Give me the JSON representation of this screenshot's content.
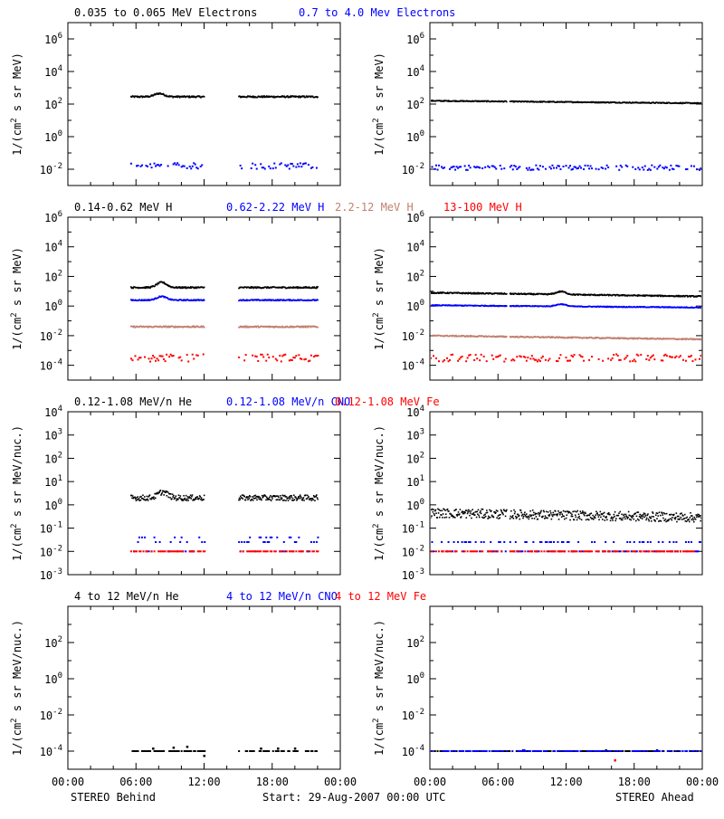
{
  "colors": {
    "black": "#000000",
    "blue": "#0000ff",
    "tan": "#c08070",
    "red": "#ff0000"
  },
  "footer": {
    "left": "STEREO Behind",
    "center": "Start: 29-Aug-2007 00:00 UTC",
    "right": "STEREO Ahead"
  },
  "chart_data": [
    {
      "type": "scatter",
      "panel": "row1-left",
      "ylabel": "1/(cm² s sr MeV)",
      "ylabel_plain": "1/(cm",
      "ylabel_sup": "2",
      "ylabel_rest": " s sr MeV)",
      "yscale": "log",
      "ylim_exp": [
        -3,
        7
      ],
      "ytick_exps": [
        -2,
        0,
        2,
        4,
        6
      ],
      "ytick_labels": [
        "10⁻²",
        "10⁰",
        "10²",
        "10⁴",
        "10⁶"
      ],
      "xlim_hours": [
        0,
        24
      ],
      "legend": [
        {
          "text": "0.035 to 0.065 MeV Electrons",
          "color": "#000000"
        },
        {
          "text": "0.7 to 4.0 Mev Electrons",
          "color": "#0000ff"
        }
      ],
      "series": [
        {
          "name": "0.035 to 0.065 MeV Electrons",
          "color": "#000000",
          "segments": [
            [
              5.5,
              12.0
            ],
            [
              15.0,
              22.0
            ]
          ],
          "level_exp": 2.45,
          "jitter": 0.05,
          "bump": {
            "at": 8.0,
            "amp": 0.2
          }
        },
        {
          "name": "0.7 to 4.0 Mev Electrons",
          "color": "#0000ff",
          "segments": [
            [
              5.5,
              12.0
            ],
            [
              15.0,
              22.0
            ]
          ],
          "level_exp": -1.8,
          "jitter": 0.18,
          "sparse": true
        }
      ]
    },
    {
      "type": "scatter",
      "panel": "row1-right",
      "ylabel_plain": "1/(cm",
      "ylabel_sup": "2",
      "ylabel_rest": " s sr MeV)",
      "yscale": "log",
      "ylim_exp": [
        -3,
        7
      ],
      "ytick_exps": [
        -2,
        0,
        2,
        4,
        6
      ],
      "ytick_labels": [
        "10⁻²",
        "10⁰",
        "10²",
        "10⁴",
        "10⁶"
      ],
      "xlim_hours": [
        0,
        24
      ],
      "series": [
        {
          "name": "0.035 to 0.065 MeV Electrons",
          "color": "#000000",
          "segments": [
            [
              0.0,
              6.7
            ],
            [
              7.0,
              24.0
            ]
          ],
          "level_exp": 2.2,
          "jitter": 0.03,
          "trend": -0.15
        },
        {
          "name": "0.7 to 4.0 Mev Electrons",
          "color": "#0000ff",
          "segments": [
            [
              0.0,
              6.7
            ],
            [
              7.0,
              24.0
            ]
          ],
          "level_exp": -1.9,
          "jitter": 0.15,
          "sparse": true
        }
      ]
    },
    {
      "type": "scatter",
      "panel": "row2-left",
      "ylabel_plain": "1/(cm",
      "ylabel_sup": "2",
      "ylabel_rest": " s sr MeV)",
      "yscale": "log",
      "ylim_exp": [
        -5,
        6
      ],
      "ytick_exps": [
        -4,
        -2,
        0,
        2,
        4,
        6
      ],
      "ytick_labels": [
        "10⁻⁴",
        "10⁻²",
        "10⁰",
        "10²",
        "10⁴",
        "10⁶"
      ],
      "xlim_hours": [
        0,
        24
      ],
      "legend": [
        {
          "text": "0.14-0.62 MeV H",
          "color": "#000000"
        },
        {
          "text": "0.62-2.22 MeV H",
          "color": "#0000ff"
        },
        {
          "text": "2.2-12 MeV H",
          "color": "#c08070"
        },
        {
          "text": "13-100 MeV H",
          "color": "#ff0000"
        }
      ],
      "series": [
        {
          "name": "0.14-0.62 MeV H",
          "color": "#000000",
          "segments": [
            [
              5.5,
              12.0
            ],
            [
              15.0,
              22.0
            ]
          ],
          "level_exp": 1.25,
          "jitter": 0.05,
          "bump": {
            "at": 8.2,
            "amp": 0.35
          }
        },
        {
          "name": "0.62-2.22 MeV H",
          "color": "#0000ff",
          "segments": [
            [
              5.5,
              12.0
            ],
            [
              15.0,
              22.0
            ]
          ],
          "level_exp": 0.4,
          "jitter": 0.04,
          "bump": {
            "at": 8.2,
            "amp": 0.25
          }
        },
        {
          "name": "2.2-12 MeV H",
          "color": "#c08070",
          "segments": [
            [
              5.5,
              12.0
            ],
            [
              15.0,
              22.0
            ]
          ],
          "level_exp": -1.4,
          "jitter": 0.05
        },
        {
          "name": "13-100 MeV H",
          "color": "#ff0000",
          "segments": [
            [
              5.5,
              12.0
            ],
            [
              15.0,
              22.0
            ]
          ],
          "level_exp": -3.5,
          "jitter": 0.25,
          "sparse": true
        }
      ]
    },
    {
      "type": "scatter",
      "panel": "row2-right",
      "ylabel_plain": "1/(cm",
      "ylabel_sup": "2",
      "ylabel_rest": " s sr MeV)",
      "yscale": "log",
      "ylim_exp": [
        -5,
        6
      ],
      "ytick_exps": [
        -4,
        -2,
        0,
        2,
        4,
        6
      ],
      "ytick_labels": [
        "10⁻⁴",
        "10⁻²",
        "10⁰",
        "10²",
        "10⁴",
        "10⁶"
      ],
      "xlim_hours": [
        0,
        24
      ],
      "series": [
        {
          "name": "0.14-0.62 MeV H",
          "color": "#000000",
          "segments": [
            [
              0.0,
              6.7
            ],
            [
              7.0,
              24.0
            ]
          ],
          "level_exp": 0.9,
          "jitter": 0.04,
          "bump": {
            "at": 11.5,
            "amp": 0.2
          },
          "trend": -0.25
        },
        {
          "name": "0.62-2.22 MeV H",
          "color": "#0000ff",
          "segments": [
            [
              0.0,
              6.7
            ],
            [
              7.0,
              24.0
            ]
          ],
          "level_exp": 0.05,
          "jitter": 0.03,
          "bump": {
            "at": 11.5,
            "amp": 0.15
          },
          "trend": -0.15
        },
        {
          "name": "2.2-12 MeV H",
          "color": "#c08070",
          "segments": [
            [
              0.0,
              6.7
            ],
            [
              7.0,
              24.0
            ]
          ],
          "level_exp": -2.0,
          "jitter": 0.04,
          "trend": -0.25
        },
        {
          "name": "13-100 MeV H",
          "color": "#ff0000",
          "segments": [
            [
              0.0,
              6.7
            ],
            [
              7.0,
              24.0
            ]
          ],
          "level_exp": -3.5,
          "jitter": 0.25,
          "sparse": true
        }
      ]
    },
    {
      "type": "scatter",
      "panel": "row3-left",
      "ylabel_plain": "1/(cm",
      "ylabel_sup": "2",
      "ylabel_rest": " s sr MeV/nuc.)",
      "yscale": "log",
      "ylim_exp": [
        -3,
        4
      ],
      "ytick_exps": [
        -3,
        -2,
        -1,
        0,
        1,
        2,
        3,
        4
      ],
      "ytick_labels": [
        "10⁻³",
        "10⁻²",
        "10⁻¹",
        "10⁰",
        "10¹",
        "10²",
        "10³",
        "10⁴"
      ],
      "xlim_hours": [
        0,
        24
      ],
      "legend": [
        {
          "text": "0.12-1.08 MeV/n He",
          "color": "#000000"
        },
        {
          "text": "0.12-1.08 MeV/n CNO",
          "color": "#0000ff"
        },
        {
          "text": "0.12-1.08 MeV Fe",
          "color": "#ff0000"
        }
      ],
      "series": [
        {
          "name": "0.12-1.08 MeV/n He",
          "color": "#000000",
          "segments": [
            [
              5.5,
              12.0
            ],
            [
              15.0,
              22.0
            ]
          ],
          "level_exp": 0.3,
          "jitter": 0.12,
          "bump": {
            "at": 8.3,
            "amp": 0.25
          }
        },
        {
          "name": "0.12-1.08 MeV/n CNO",
          "color": "#0000ff",
          "segments": [
            [
              5.5,
              12.0
            ],
            [
              15.0,
              22.0
            ]
          ],
          "level_exp": -1.55,
          "jitter": 0.12,
          "quantized": [
            -1.6,
            -1.4,
            -2.0
          ],
          "sparse": true
        },
        {
          "name": "0.12-1.08 MeV Fe",
          "color": "#ff0000",
          "segments": [
            [
              5.5,
              12.0
            ],
            [
              15.0,
              22.0
            ]
          ],
          "level_exp": -2.0,
          "jitter": 0.0,
          "sparse": true
        }
      ]
    },
    {
      "type": "scatter",
      "panel": "row3-right",
      "ylabel_plain": "1/(cm",
      "ylabel_sup": "2",
      "ylabel_rest": " s sr MeV/nuc.)",
      "yscale": "log",
      "ylim_exp": [
        -3,
        4
      ],
      "ytick_exps": [
        -3,
        -2,
        -1,
        0,
        1,
        2,
        3,
        4
      ],
      "ytick_labels": [
        "10⁻³",
        "10⁻²",
        "10⁻¹",
        "10⁰",
        "10¹",
        "10²",
        "10³",
        "10⁴"
      ],
      "xlim_hours": [
        0,
        24
      ],
      "series": [
        {
          "name": "0.12-1.08 MeV/n He",
          "color": "#000000",
          "segments": [
            [
              0.0,
              6.7
            ],
            [
              7.0,
              24.0
            ]
          ],
          "level_exp": -0.35,
          "jitter": 0.2,
          "trend": -0.2
        },
        {
          "name": "0.12-1.08 MeV/n CNO",
          "color": "#0000ff",
          "segments": [
            [
              0.0,
              6.7
            ],
            [
              7.0,
              24.0
            ]
          ],
          "level_exp": -2.0,
          "jitter": 0.0,
          "quantized": [
            -2.0,
            -1.6
          ],
          "sparse": true
        },
        {
          "name": "0.12-1.08 MeV Fe",
          "color": "#ff0000",
          "segments": [
            [
              0.0,
              6.7
            ],
            [
              7.0,
              24.0
            ]
          ],
          "level_exp": -2.0,
          "jitter": 0.0,
          "sparse": true
        }
      ]
    },
    {
      "type": "scatter",
      "panel": "row4-left",
      "ylabel_plain": "1/(cm",
      "ylabel_sup": "2",
      "ylabel_rest": " s sr MeV/nuc.)",
      "yscale": "log",
      "ylim_exp": [
        -5,
        4
      ],
      "ytick_exps": [
        -4,
        -2,
        0,
        2
      ],
      "ytick_labels": [
        "10⁻⁴",
        "10⁻²",
        "10⁰",
        "10²"
      ],
      "xlim_hours": [
        0,
        24
      ],
      "xtick_labels": [
        "00:00",
        "06:00",
        "12:00",
        "18:00",
        "00:00"
      ],
      "legend": [
        {
          "text": "4 to 12 MeV/n He",
          "color": "#000000"
        },
        {
          "text": "4 to 12 MeV/n CNO",
          "color": "#0000ff"
        },
        {
          "text": "4 to 12 MeV Fe",
          "color": "#ff0000"
        }
      ],
      "series": [
        {
          "name": "4 to 12 MeV/n He",
          "color": "#000000",
          "segments": [
            [
              5.5,
              12.0
            ],
            [
              15.0,
              22.0
            ]
          ],
          "level_exp": -4.0,
          "jitter": 0.0,
          "sparse": true,
          "spikes": [
            [
              7.5,
              -3.85
            ],
            [
              9.3,
              -3.8
            ],
            [
              10.5,
              -3.75
            ],
            [
              12.0,
              -4.25
            ],
            [
              17.0,
              -3.85
            ],
            [
              18.5,
              -3.85
            ],
            [
              20.0,
              -3.85
            ]
          ]
        },
        {
          "name": "4 to 12 MeV/n CNO",
          "color": "#0000ff",
          "segments": [],
          "level_exp": -4.0,
          "jitter": 0.0
        }
      ]
    },
    {
      "type": "scatter",
      "panel": "row4-right",
      "ylabel_plain": "1/(cm",
      "ylabel_sup": "2",
      "ylabel_rest": " s sr MeV/nuc.)",
      "yscale": "log",
      "ylim_exp": [
        -5,
        4
      ],
      "ytick_exps": [
        -4,
        -2,
        0,
        2
      ],
      "ytick_labels": [
        "10⁻⁴",
        "10⁻²",
        "10⁰",
        "10²"
      ],
      "xlim_hours": [
        0,
        24
      ],
      "xtick_labels": [
        "00:00",
        "06:00",
        "12:00",
        "18:00",
        "00:00"
      ],
      "series": [
        {
          "name": "4 to 12 MeV/n He",
          "color": "#000000",
          "segments": [
            [
              0.0,
              24.0
            ]
          ],
          "level_exp": -4.0,
          "jitter": 0.0,
          "sparse": true,
          "spikes": [
            [
              8.2,
              -3.95
            ],
            [
              15.5,
              -3.95
            ],
            [
              20.0,
              -3.95
            ]
          ]
        },
        {
          "name": "4 to 12 MeV/n CNO",
          "color": "#0000ff",
          "segments": [
            [
              0.0,
              24.0
            ]
          ],
          "level_exp": -4.0,
          "jitter": 0.0,
          "sparse": true,
          "spikes": [
            [
              8.3,
              -3.95
            ]
          ]
        },
        {
          "name": "4 to 12 MeV Fe",
          "color": "#ff0000",
          "segments": [],
          "level_exp": -4.5,
          "jitter": 0.0,
          "spikes": [
            [
              16.3,
              -4.5
            ]
          ]
        }
      ]
    }
  ]
}
